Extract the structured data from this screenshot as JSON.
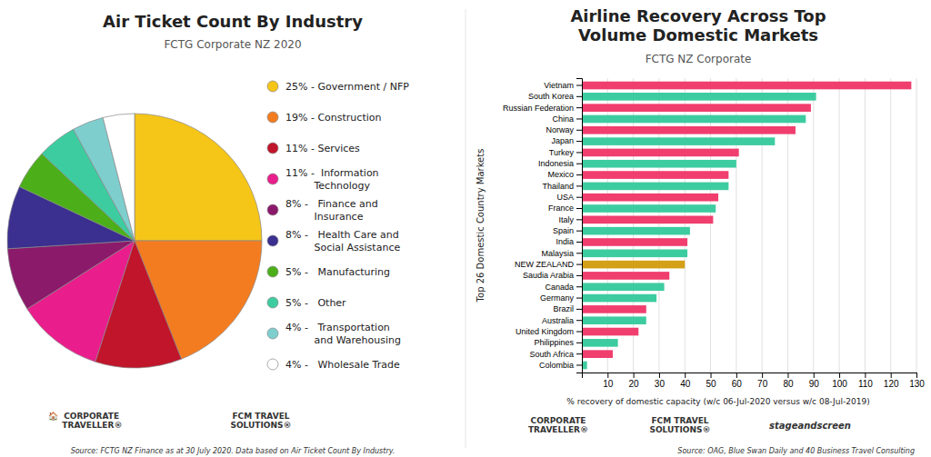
{
  "chart_data": [
    {
      "type": "pie",
      "title": "Air Ticket Count By Industry",
      "subtitle": "FCTG Corporate NZ 2020",
      "categories": [
        "25% - Government / NFP",
        "19% - Construction",
        "11% - Services",
        "11% -  Information\n         Technology",
        "8% -   Finance and\n         Insurance",
        "8% -   Health Care and\n         Social Assistance",
        "5% -   Manufacturing",
        "5% -   Other",
        "4% -   Transportation\n         and Warehousing",
        "4% -   Wholesale Trade"
      ],
      "values": [
        25,
        19,
        11,
        11,
        8,
        8,
        5,
        5,
        4,
        4
      ],
      "colors": [
        "#f5c518",
        "#f47c20",
        "#c0152a",
        "#e91e8c",
        "#8b1a6b",
        "#3b2f8f",
        "#4caf1a",
        "#3dcca0",
        "#7ecece",
        "#ffffff"
      ],
      "legend": "right",
      "annotations": [
        "Source: FCTG NZ Finance as at 30 July 2020. Data based on Air Ticket Count By Industry.",
        "🏠  CORPORATE\n      TRAVELLER®",
        "FCM TRAVEL\nSOLUTIONS®"
      ]
    },
    {
      "type": "bar",
      "orientation": "horizontal",
      "title": "Airline Recovery Across Top\nVolume Domestic Markets",
      "subtitle": "FCTG NZ Corporate",
      "categories": [
        "Vietnam",
        "South Korea",
        "Russian Federation",
        "China",
        "Norway",
        "Japan",
        "Turkey",
        "Indonesia",
        "Mexico",
        "Thailand",
        "USA",
        "France",
        "Italy",
        "Spain",
        "India",
        "Malaysia",
        "NEW ZEALAND",
        "Saudia Arabia",
        "Canada",
        "Germany",
        "Brazil",
        "Australia",
        "United Kingdom",
        "Philippines",
        "South Africa",
        "Colombia"
      ],
      "values": [
        128,
        91,
        89,
        87,
        83,
        75,
        61,
        60,
        57,
        57,
        53,
        52,
        51,
        42,
        41,
        41,
        40,
        34,
        32,
        29,
        25,
        25,
        22,
        14,
        12,
        2
      ],
      "colors": [
        "#f03e6e",
        "#3dcca0",
        "#f03e6e",
        "#3dcca0",
        "#f03e6e",
        "#3dcca0",
        "#f03e6e",
        "#3dcca0",
        "#f03e6e",
        "#3dcca0",
        "#f03e6e",
        "#3dcca0",
        "#f03e6e",
        "#3dcca0",
        "#f03e6e",
        "#3dcca0",
        "#d4a017",
        "#f03e6e",
        "#3dcca0",
        "#3dcca0",
        "#f03e6e",
        "#3dcca0",
        "#f03e6e",
        "#3dcca0",
        "#f03e6e",
        "#3dcca0"
      ],
      "xlabel": "% recovery of domestic capacity (w/c 06-Jul-2020 versus w/c 08-Jul-2019)",
      "ylabel": "Top 26 Domestic Country Markets",
      "xlim": [
        0,
        130
      ],
      "xticks": [
        10,
        20,
        30,
        40,
        50,
        60,
        70,
        80,
        90,
        100,
        110,
        120,
        130
      ],
      "grid": true,
      "annotations": [
        "CORPORATE\nTRAVELLER®",
        "FCM TRAVEL\nSOLUTIONS®",
        "stageandscreen",
        "Source: OAG, Blue Swan Daily and 40 Business Travel Consulting"
      ]
    }
  ]
}
